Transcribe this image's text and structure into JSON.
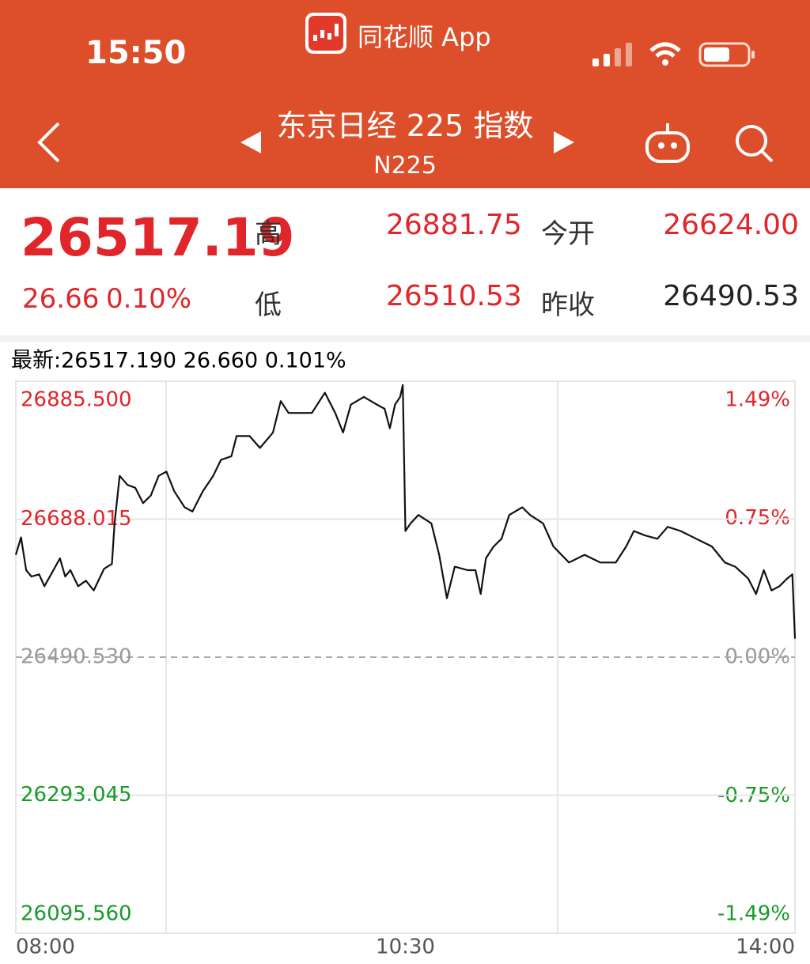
{
  "status_bar": {
    "time": "15:50",
    "app_name": "同花顺 App"
  },
  "header": {
    "title": "东京日经 225 指数",
    "code": "N225"
  },
  "quote": {
    "price": "26517.19",
    "change": "26.66",
    "change_pct": "0.10%",
    "high_label": "高",
    "high": "26881.75",
    "low_label": "低",
    "low": "26510.53",
    "open_label": "今开",
    "open": "26624.00",
    "prev_close_label": "昨收",
    "prev_close": "26490.53"
  },
  "chart_data": {
    "type": "line",
    "latest_label": "最新:26517.190  26.660  0.101%",
    "x": [
      0,
      2,
      4,
      6,
      9,
      11,
      14,
      17,
      19,
      21,
      24,
      27,
      30,
      34,
      37,
      38,
      40,
      43,
      46,
      49,
      52,
      55,
      58,
      61,
      65,
      68,
      72,
      76,
      79,
      83,
      85,
      90,
      94,
      99,
      102,
      105,
      110,
      114,
      119,
      123,
      126,
      129,
      134,
      139,
      142,
      144,
      146,
      148,
      149,
      150,
      152,
      155,
      160,
      163,
      166,
      169,
      174,
      177,
      179,
      181,
      184,
      187,
      190,
      195,
      198,
      203,
      207,
      213,
      219,
      225,
      231,
      235,
      238,
      242,
      247,
      251,
      256,
      262,
      268,
      273,
      277,
      282,
      285,
      288,
      291,
      294,
      297,
      299,
      300
    ],
    "series": [
      {
        "color": "#111111",
        "values": [
          26637,
          26662,
          26615,
          26606,
          26609,
          26592,
          26612,
          26632,
          26606,
          26615,
          26592,
          26600,
          26586,
          26617,
          26624,
          26682,
          26750,
          26737,
          26733,
          26711,
          26722,
          26750,
          26756,
          26728,
          26705,
          26699,
          26728,
          26750,
          26773,
          26778,
          26807,
          26807,
          26790,
          26812,
          26857,
          26840,
          26840,
          26840,
          26869,
          26840,
          26812,
          26852,
          26863,
          26852,
          26846,
          26818,
          26852,
          26863,
          26880,
          26671,
          26682,
          26694,
          26682,
          26637,
          26575,
          26620,
          26615,
          26615,
          26581,
          26632,
          26649,
          26660,
          26694,
          26705,
          26694,
          26682,
          26649,
          26626,
          26637,
          26626,
          26626,
          26649,
          26671,
          26665,
          26660,
          26677,
          26671,
          26660,
          26649,
          26626,
          26620,
          26603,
          26581,
          26615,
          26586,
          26592,
          26603,
          26609,
          26517
        ]
      }
    ],
    "xlim": [
      0,
      300
    ],
    "xticks": [
      {
        "value": 0,
        "label": "08:00"
      },
      {
        "value": 150,
        "label": "10:30"
      },
      {
        "value": 300,
        "label": "14:00"
      }
    ],
    "ylim": [
      26095.56,
      26885.5
    ],
    "yticks": [
      {
        "value": 26885.5,
        "label": "26885.500"
      },
      26688.015,
      {
        "value": 26490.53,
        "label": "26490.530"
      },
      26293.045,
      {
        "value": 26095.56,
        "label": "26095.560"
      }
    ],
    "y2lim": [
      -1.49,
      1.49
    ],
    "y2ticks": [
      {
        "value": 1.49,
        "label": "1.49%"
      },
      {
        "value": 0.75,
        "label": "0.75%"
      },
      {
        "value": 0,
        "label": "0.00%"
      },
      {
        "value": -0.75,
        "label": "-0.75%"
      },
      {
        "value": -1.49,
        "label": "-1.49%"
      }
    ],
    "up_color": "#e0262b",
    "down_color": "#1a9a2a",
    "flat_color": "#999999",
    "grid": true
  }
}
